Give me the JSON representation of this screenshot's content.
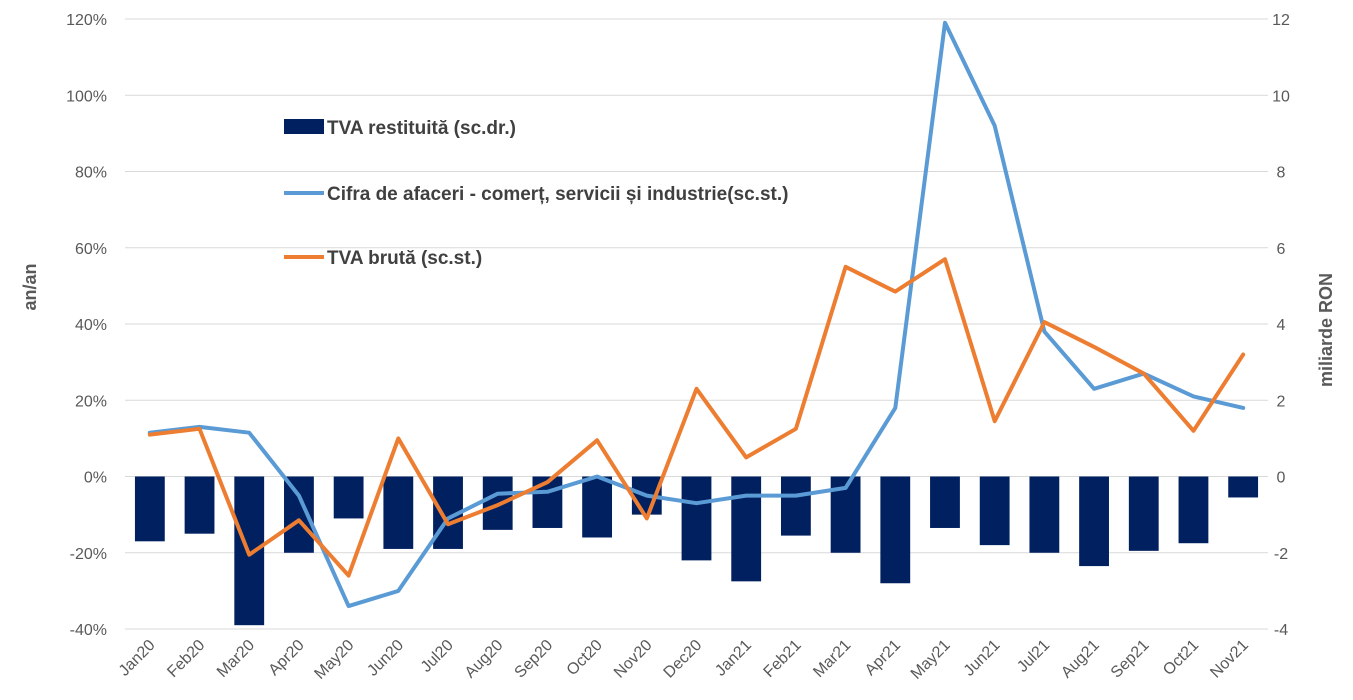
{
  "chart_data": {
    "type": "bar+line",
    "title": "",
    "grid": true,
    "legend_position": "upper-left inside plot",
    "categories": [
      "Jan20",
      "Feb20",
      "Mar20",
      "Apr20",
      "May20",
      "Jun20",
      "Jul20",
      "Aug20",
      "Sep20",
      "Oct20",
      "Nov20",
      "Dec20",
      "Jan21",
      "Feb21",
      "Mar21",
      "Apr21",
      "May21",
      "Jun21",
      "Jul21",
      "Aug21",
      "Sep21",
      "Oct21",
      "Nov21"
    ],
    "y_left": {
      "label": "an/an",
      "ylim": [
        -40,
        120
      ],
      "ticks": [
        -40,
        -20,
        0,
        20,
        40,
        60,
        80,
        100,
        120
      ],
      "tick_labels": [
        "-40%",
        "-20%",
        "0%",
        "20%",
        "40%",
        "60%",
        "80%",
        "100%",
        "120%"
      ]
    },
    "y_right": {
      "label": "miliarde RON",
      "ylim": [
        -4,
        12
      ],
      "ticks": [
        -4,
        -2,
        0,
        2,
        4,
        6,
        8,
        10,
        12
      ],
      "tick_labels": [
        "-4",
        "-2",
        "0",
        "2",
        "4",
        "6",
        "8",
        "10",
        "12"
      ]
    },
    "series": [
      {
        "name": "TVA restituită (sc.dr.)",
        "type": "bar",
        "axis": "right",
        "color": "#002060",
        "values": [
          -1.7,
          -1.5,
          -3.9,
          -2.0,
          -1.1,
          -1.9,
          -1.9,
          -1.4,
          -1.35,
          -1.6,
          -1.0,
          -2.2,
          -2.75,
          -1.55,
          -2.0,
          -2.8,
          -1.35,
          -1.8,
          -2.0,
          -2.35,
          -1.95,
          -1.75,
          -0.55
        ]
      },
      {
        "name": "Cifra de afaceri - comerț, servicii și industrie(sc.st.)",
        "type": "line",
        "axis": "left",
        "color": "#5B9BD5",
        "values": [
          11.5,
          13,
          11.5,
          -5,
          -34,
          -30,
          -11,
          -4.5,
          -4,
          0,
          -5,
          -7,
          -5,
          -5,
          -3,
          18,
          119,
          92,
          38,
          23,
          27,
          21,
          18
        ]
      },
      {
        "name": "TVA brută (sc.st.)",
        "type": "line",
        "axis": "left",
        "color": "#ED7D31",
        "values": [
          11,
          12.5,
          -20.5,
          -11.5,
          -26,
          10,
          -12.5,
          -7.5,
          -1.5,
          9.5,
          -11,
          23,
          5,
          12.5,
          55,
          48.5,
          57,
          14.5,
          40.5,
          34,
          27,
          12,
          32
        ]
      }
    ]
  }
}
